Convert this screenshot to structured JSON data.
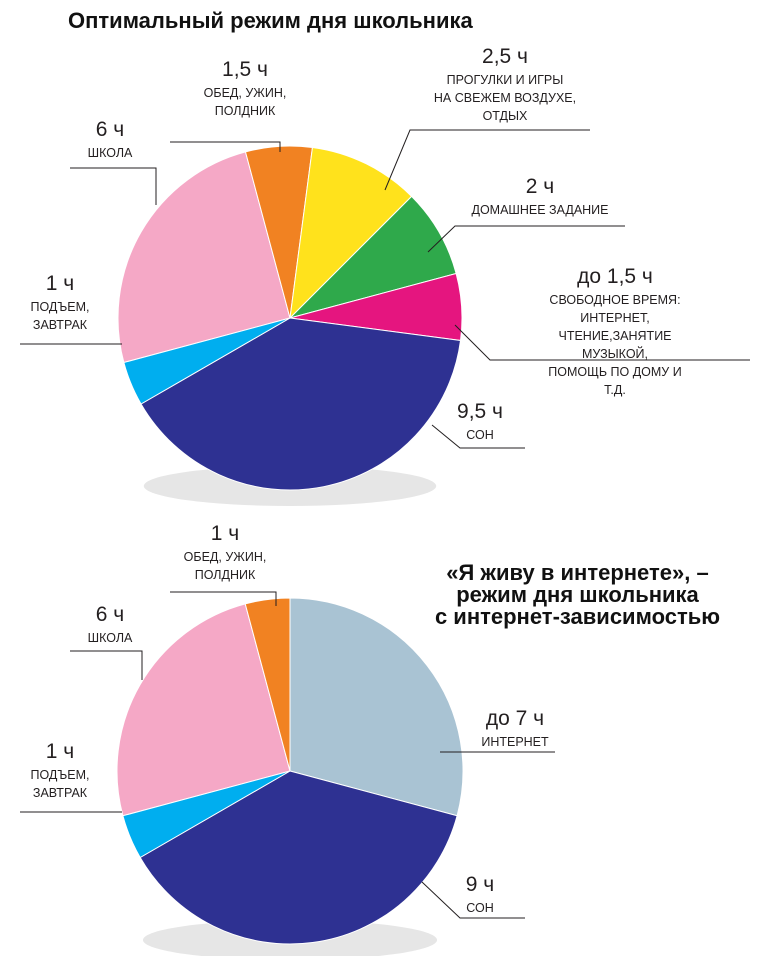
{
  "chart_data": [
    {
      "type": "pie",
      "title": "Оптимальный режим дня школьника",
      "categories": [
        "ШКОЛА",
        "ОБЕД, УЖИН,\nПОЛДНИК",
        "ПРОГУЛКИ И ИГРЫ\nНА СВЕЖЕМ ВОЗДУХЕ,\nОТДЫХ",
        "ДОМАШНЕЕ ЗАДАНИЕ",
        "СВОБОДНОЕ ВРЕМЯ: ИНТЕРНЕТ,\nЧТЕНИЕ,ЗАНЯТИЕ МУЗЫКОЙ,\nПОМОЩЬ ПО ДОМУ И Т.Д.",
        "СОН",
        "ПОДЪЕМ,\nЗАВТРАК"
      ],
      "values": [
        6,
        1.5,
        2.5,
        2,
        1.5,
        9.5,
        1
      ],
      "value_labels": [
        "6 ч",
        "1,5 ч",
        "2,5 ч",
        "2 ч",
        "до 1,5 ч",
        "9,5 ч",
        "1 ч"
      ],
      "colors": [
        "#f5a8c6",
        "#f18222",
        "#ffe21c",
        "#2fa94b",
        "#e5157f",
        "#2e3192",
        "#00aeef"
      ]
    },
    {
      "type": "pie",
      "title": "«Я живу в интернете», –\nрежим дня школьника\nс интернет-зависимостью",
      "categories": [
        "ШКОЛА",
        "ОБЕД, УЖИН,\nПОЛДНИК",
        "ИНТЕРНЕТ",
        "СОН",
        "ПОДЪЕМ,\nЗАВТРАК"
      ],
      "values": [
        6,
        1,
        7,
        9,
        1
      ],
      "value_labels": [
        "6 ч",
        "1 ч",
        "до 7 ч",
        "9 ч",
        "1 ч"
      ],
      "colors": [
        "#f5a8c6",
        "#f18222",
        "#a9c3d3",
        "#2e3192",
        "#00aeef"
      ]
    }
  ]
}
